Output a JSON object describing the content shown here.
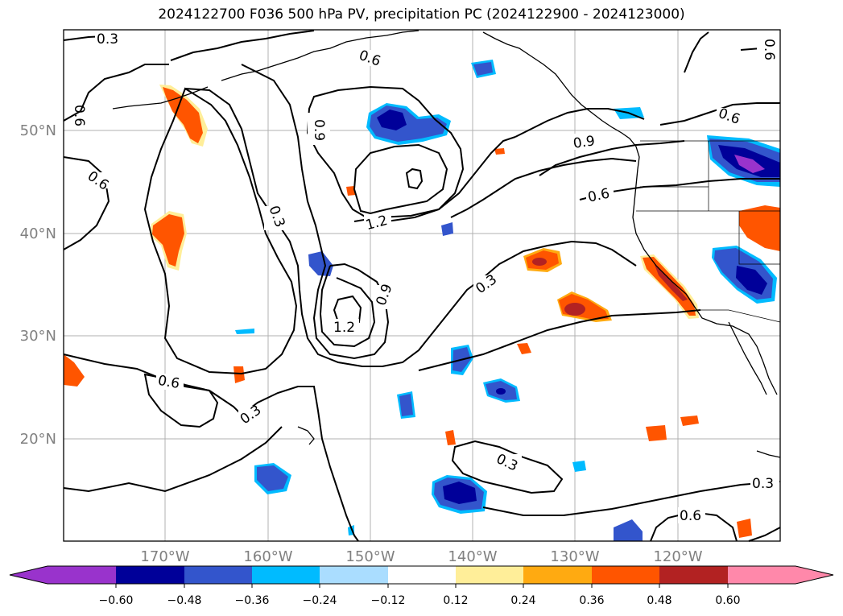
{
  "title": "2024122700 F036 500 hPa PV, precipitation PC (2024122900 - 2024123000)",
  "map": {
    "lat_labels": [
      "50°N",
      "40°N",
      "30°N",
      "20°N"
    ],
    "lon_labels": [
      "170°W",
      "160°W",
      "150°W",
      "140°W",
      "130°W",
      "120°W"
    ],
    "label_color": "#808080"
  },
  "contours": {
    "labels": [
      "0.3",
      "0.6",
      "0.6",
      "0.6",
      "0.9",
      "0.6",
      "0.6",
      "0.3",
      "0.6",
      "1.2",
      "1.2",
      "0.9",
      "0.3",
      "0.3",
      "0.9",
      "0.6",
      "0.3",
      "0.3",
      "0.6"
    ]
  },
  "colorbar": {
    "colors": [
      "#9933cc",
      "#000099",
      "#3355cc",
      "#00bbff",
      "#aaddff",
      "#ffffff",
      "#ffee99",
      "#ffaa11",
      "#ff5500",
      "#b22222",
      "#ff88aa"
    ],
    "ticks": [
      "−0.60",
      "−0.48",
      "−0.36",
      "−0.24",
      "−0.12",
      "0.12",
      "0.24",
      "0.36",
      "0.48",
      "0.60"
    ]
  }
}
